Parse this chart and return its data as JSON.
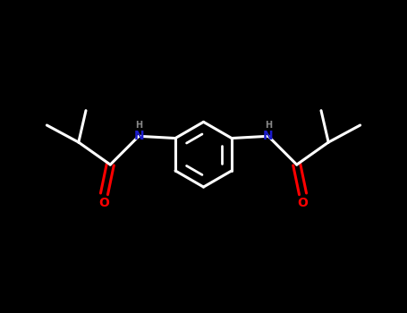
{
  "background_color": "#000000",
  "bond_color": "#ffffff",
  "N_color": "#1a1acd",
  "O_color": "#ff0000",
  "H_color": "#888888",
  "line_width": 2.2,
  "figsize": [
    4.55,
    3.5
  ],
  "dpi": 100,
  "xlim": [
    0,
    10
  ],
  "ylim": [
    0,
    7.7
  ]
}
